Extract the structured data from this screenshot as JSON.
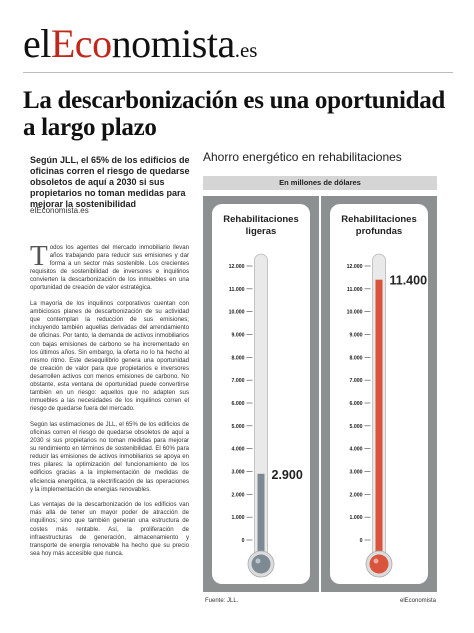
{
  "masthead": {
    "prefix": "el",
    "accent": "Eco",
    "suffix": "nomista",
    "domain": ".es"
  },
  "headline": "La descarbonización es una oportunidad a largo plazo",
  "lede": "Según JLL, el 65% de los edificios de oficinas corren el riesgo de quedarse obsoletos de aquí a 2030 si sus propietarios no toman medidas para mejorar la sostenibilidad",
  "byline": "elEconomista.es",
  "body": {
    "dropcap": "T",
    "p1": "odos los agentes del mercado inmobiliario llevan años trabajando para reducir sus emisiones y dar forma a un sector más sostenible. Los crecientes requisitos de sostenibilidad de inversores e inquilinos convierten la descarbonización de los inmuebles en una oportunidad de creación de valor estratégica.",
    "p2": "La mayoría de los inquilinos corporativos cuentan con ambiciosos planes de descarbonización de su actividad que contemplan la reducción de sus emisiones; incluyendo también aquellas derivadas del arrendamiento de oficinas. Por tanto, la demanda de activos inmobiliarios con bajas emisiones de carbono se ha incrementado en los últimos años. Sin embargo, la oferta no lo ha hecho al mismo ritmo. Este desequilibrio genera una oportunidad de creación de valor para que propietarios e inversores desarrollen activos con menos emisiones de carbono. No obstante, esta ventana de oportunidad puede convertirse también en un riesgo: aquellos que no adapten sus inmuebles a las necesidades de los inquilinos corren el riesgo de quedarse fuera del mercado.",
    "p3": "Según las estimaciones de JLL, el 65% de los edificios de oficinas corren el riesgo de quedarse obsoletos de aquí a 2030 si sus propietarios no toman medidas para mejorar su rendimiento en términos de sostenibilidad. El 60% para reducir las emisiones de activos inmobiliarios se apoya en tres pilares: la optimización del funcionamiento de los edificios gracias a la implementación de medidas de eficiencia energética, la electrificación de las operaciones y la implementación de energías renovables.",
    "p4": "Las ventajas de la descarbonización de los edificios van más allá de tener un mayor poder de atracción de inquilinos; sino que también generan una estructura de costes más rentable. Así, la proliferación de infraestructuras de generación, almacenamiento y transporte de energía renovable ha hecho que su precio sea hoy más accesible que nunca."
  },
  "chart_data": {
    "type": "bar",
    "title": "Ahorro energético en rehabilitaciones",
    "subtitle": "En millones de dólares",
    "categories": [
      "Rehabilitaciones ligeras",
      "Rehabilitaciones profundas"
    ],
    "values": [
      2900,
      11400
    ],
    "value_labels": [
      "2.900",
      "11.400"
    ],
    "ylim": [
      0,
      12000
    ],
    "ticks": [
      0,
      1000,
      2000,
      3000,
      4000,
      5000,
      6000,
      7000,
      8000,
      9000,
      10000,
      11000,
      12000
    ],
    "tick_labels": [
      "0",
      "1.000",
      "2.000",
      "3.000",
      "4.000",
      "5.000",
      "6.000",
      "7.000",
      "8.000",
      "9.000",
      "10.000",
      "11.000",
      "12.000"
    ],
    "colors": [
      "#7d8a94",
      "#d8543c"
    ],
    "source": "Fuente: JLL.",
    "brand": "elEconomista"
  }
}
